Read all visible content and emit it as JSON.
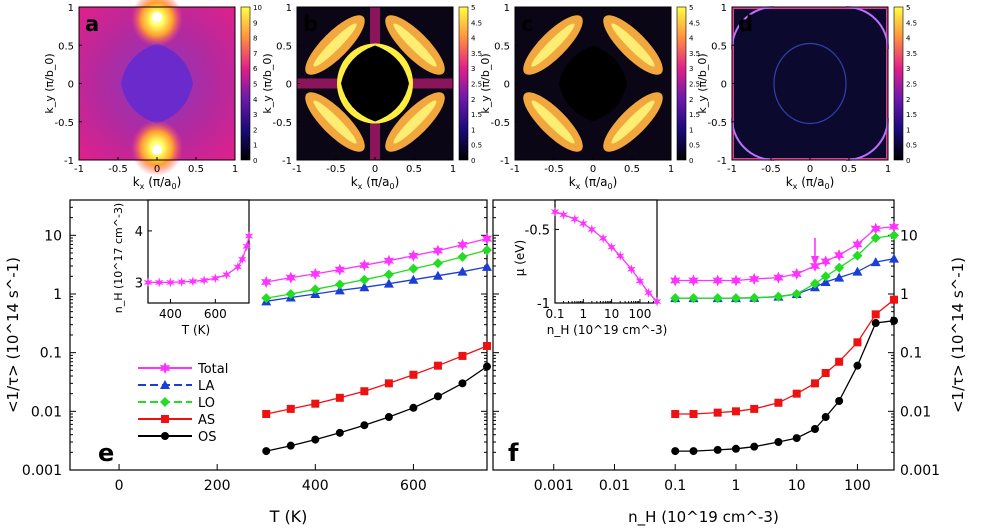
{
  "colors": {
    "total": "#ff33ff",
    "la": "#1a3fd6",
    "lo": "#22dd22",
    "as": "#ee1111",
    "os": "#000000"
  },
  "heatmaps": [
    {
      "letter": "a",
      "xlabel_main": "k",
      "xlabel_sub": "x",
      "xlabel_tail": " (π/a",
      "xlabel_sub2": "0",
      "xlabel_end": ")",
      "ylabel": "k_y (π/b_0)",
      "xticks": [
        "-1",
        "-0.5",
        "0",
        "0.5",
        "1"
      ],
      "yticks": [
        "1",
        "0.5",
        "0",
        "-0.5",
        "-1"
      ],
      "cbar_ticks": [
        "10",
        "9",
        "8",
        "7",
        "6",
        "5",
        "4",
        "3",
        "2",
        "1",
        "0"
      ]
    },
    {
      "letter": "b",
      "xlabel_main": "k",
      "xlabel_sub": "x",
      "xlabel_tail": " (π/a",
      "xlabel_sub2": "0",
      "xlabel_end": ")",
      "ylabel": "k_y (π/b_0)",
      "xticks": [
        "-1",
        "-0.5",
        "0",
        "0.5",
        "1"
      ],
      "yticks": [
        "1",
        "0.5",
        "0",
        "-0.5",
        "-1"
      ],
      "cbar_ticks": [
        "5",
        "4.5",
        "4",
        "3.5",
        "3",
        "2.5",
        "2",
        "1.5",
        "1",
        "0.5",
        "0"
      ]
    },
    {
      "letter": "c",
      "xlabel_main": "k",
      "xlabel_sub": "x",
      "xlabel_tail": " (π/a",
      "xlabel_sub2": "0",
      "xlabel_end": ")",
      "ylabel": "k_y (π/b_0)",
      "xticks": [
        "-1",
        "-0.5",
        "0",
        "0.5",
        "1"
      ],
      "yticks": [
        "1",
        "0.5",
        "0",
        "-0.5",
        "-1"
      ],
      "cbar_ticks": [
        "5",
        "4.5",
        "4",
        "3.5",
        "3",
        "2.5",
        "2",
        "1.5",
        "1",
        "0.5",
        "0"
      ]
    },
    {
      "letter": "d",
      "xlabel_main": "k",
      "xlabel_sub": "x",
      "xlabel_tail": " (π/a",
      "xlabel_sub2": "0",
      "xlabel_end": ")",
      "ylabel": "k_y (π/b_0)",
      "xticks": [
        "-1",
        "-0.5",
        "0",
        "0.5",
        "1"
      ],
      "yticks": [
        "1",
        "0.5",
        "0",
        "-0.5",
        "-1"
      ],
      "cbar_ticks": [
        "5",
        "4.5",
        "4",
        "3.5",
        "3",
        "2.5",
        "2",
        "1.5",
        "1",
        "0.5",
        "0"
      ]
    }
  ],
  "chart_data": [
    {
      "type": "line",
      "panel": "e",
      "xlabel": "T (K)",
      "ylabel": "<1/τ> (10^14 s^-1)",
      "xlim": [
        -100,
        750
      ],
      "ylim": [
        0.001,
        40
      ],
      "yscale": "log",
      "xticks": [
        "0",
        "200",
        "400",
        "600"
      ],
      "yticks": [
        "10",
        "1",
        "0.1",
        "0.01",
        "0.001"
      ],
      "legend": [
        "Total",
        "LA",
        "LO",
        "AS",
        "OS"
      ],
      "series": [
        {
          "name": "Total",
          "x": [
            300,
            350,
            400,
            450,
            500,
            550,
            600,
            650,
            700,
            750
          ],
          "y": [
            1.6,
            1.9,
            2.2,
            2.6,
            3.1,
            3.7,
            4.5,
            5.5,
            6.9,
            8.8
          ]
        },
        {
          "name": "LA",
          "x": [
            300,
            350,
            400,
            450,
            500,
            550,
            600,
            650,
            700,
            750
          ],
          "y": [
            0.75,
            0.87,
            1.0,
            1.15,
            1.3,
            1.5,
            1.75,
            2.05,
            2.4,
            2.9
          ]
        },
        {
          "name": "LO",
          "x": [
            300,
            350,
            400,
            450,
            500,
            550,
            600,
            650,
            700,
            750
          ],
          "y": [
            0.85,
            1.0,
            1.2,
            1.45,
            1.75,
            2.15,
            2.7,
            3.35,
            4.3,
            5.6
          ]
        },
        {
          "name": "AS",
          "x": [
            300,
            350,
            400,
            450,
            500,
            550,
            600,
            650,
            700,
            750
          ],
          "y": [
            0.009,
            0.011,
            0.0135,
            0.017,
            0.022,
            0.03,
            0.042,
            0.06,
            0.088,
            0.13
          ]
        },
        {
          "name": "OS",
          "x": [
            300,
            350,
            400,
            450,
            500,
            550,
            600,
            650,
            700,
            750
          ],
          "y": [
            0.0021,
            0.0026,
            0.0033,
            0.0043,
            0.0058,
            0.008,
            0.0115,
            0.018,
            0.03,
            0.058
          ]
        }
      ],
      "inset": {
        "xlabel": "T (K)",
        "ylabel": "n_H (10^17 cm^-3)",
        "xlim": [
          300,
          750
        ],
        "ylim": [
          2.6,
          4.6
        ],
        "xticks": [
          "400",
          "600"
        ],
        "yticks": [
          "4",
          "3"
        ],
        "x": [
          300,
          350,
          400,
          450,
          500,
          550,
          600,
          650,
          700,
          720,
          740,
          750
        ],
        "y": [
          3.0,
          3.0,
          3.0,
          3.01,
          3.02,
          3.04,
          3.08,
          3.15,
          3.3,
          3.45,
          3.7,
          3.9
        ]
      }
    },
    {
      "type": "line",
      "panel": "f",
      "xlabel": "n_H (10^19 cm^-3)",
      "ylabel": "<1/τ> (10^14 s^-1)",
      "xlim": [
        0.0001,
        400
      ],
      "ylim": [
        0.001,
        40
      ],
      "xscale": "log",
      "yscale": "log",
      "xticks": [
        "0.001",
        "0.01",
        "0.1",
        "1",
        "10",
        "100"
      ],
      "yticks": [
        "10",
        "1",
        "0.1",
        "0.01",
        "0.001"
      ],
      "annotation": "arrow at n_H ≈ 20",
      "series": [
        {
          "name": "Total",
          "x": [
            0.1,
            0.2,
            0.5,
            1,
            2,
            5,
            10,
            20,
            30,
            50,
            100,
            200,
            400
          ],
          "y": [
            1.7,
            1.7,
            1.7,
            1.7,
            1.8,
            1.9,
            2.2,
            3.0,
            3.6,
            4.6,
            7.0,
            13,
            14
          ]
        },
        {
          "name": "LA",
          "x": [
            0.1,
            0.2,
            0.5,
            1,
            2,
            5,
            10,
            20,
            30,
            50,
            100,
            200,
            400
          ],
          "y": [
            0.85,
            0.85,
            0.85,
            0.85,
            0.86,
            0.9,
            1.0,
            1.3,
            1.6,
            1.9,
            2.4,
            3.5,
            4.0
          ]
        },
        {
          "name": "LO",
          "x": [
            0.1,
            0.2,
            0.5,
            1,
            2,
            5,
            10,
            20,
            30,
            50,
            100,
            200,
            400
          ],
          "y": [
            0.85,
            0.85,
            0.85,
            0.85,
            0.86,
            0.9,
            1.0,
            1.5,
            2.0,
            2.8,
            4.5,
            9.0,
            10
          ]
        },
        {
          "name": "AS",
          "x": [
            0.1,
            0.2,
            0.5,
            1,
            2,
            5,
            10,
            20,
            30,
            50,
            100,
            200,
            400
          ],
          "y": [
            0.009,
            0.009,
            0.0095,
            0.01,
            0.011,
            0.014,
            0.02,
            0.03,
            0.045,
            0.07,
            0.15,
            0.45,
            0.8
          ]
        },
        {
          "name": "OS",
          "x": [
            0.1,
            0.2,
            0.5,
            1,
            2,
            5,
            10,
            20,
            30,
            50,
            100,
            200,
            400
          ],
          "y": [
            0.0021,
            0.0021,
            0.0022,
            0.0023,
            0.0025,
            0.003,
            0.0035,
            0.005,
            0.008,
            0.015,
            0.06,
            0.32,
            0.35
          ]
        }
      ],
      "inset": {
        "xlabel": "n_H (10^19 cm^-3)",
        "ylabel": "μ (eV)",
        "xscale": "log",
        "xlim": [
          0.1,
          400
        ],
        "ylim": [
          -1,
          -0.3
        ],
        "xticks": [
          "0.1",
          "1",
          "10",
          "100"
        ],
        "yticks": [
          "-0.5",
          "-1"
        ],
        "x": [
          0.1,
          0.2,
          0.5,
          1,
          2,
          5,
          10,
          20,
          50,
          100,
          200,
          400
        ],
        "y": [
          -0.38,
          -0.4,
          -0.43,
          -0.46,
          -0.5,
          -0.56,
          -0.62,
          -0.68,
          -0.77,
          -0.85,
          -0.93,
          -0.99
        ]
      }
    }
  ]
}
